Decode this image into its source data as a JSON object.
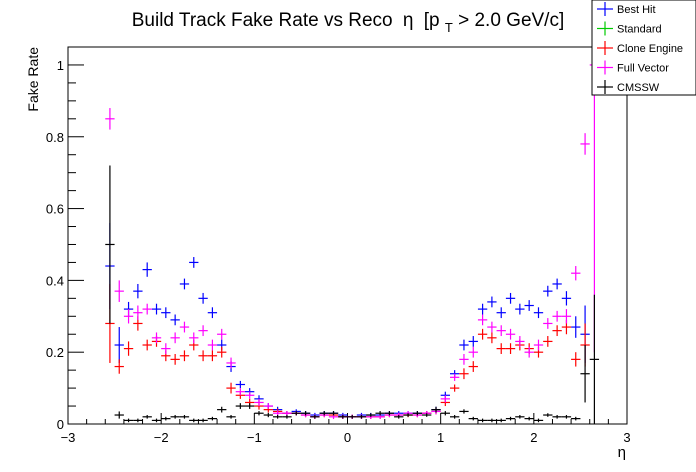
{
  "chart_data": {
    "type": "scatter",
    "title_main": "Build Track Fake Rate vs Reco",
    "title_eta": "η",
    "title_bracket": "[p",
    "title_sub": "T",
    "title_rest": " > 2.0 GeV/c]",
    "xlabel": "η",
    "ylabel": "Fake Rate",
    "xlim": [
      -3.0,
      3.0
    ],
    "ylim": [
      0,
      1.05
    ],
    "xticks": [
      -3,
      -2,
      -1,
      0,
      1,
      2,
      3
    ],
    "xtick_labels": [
      "−3",
      "−2",
      "−1",
      "0",
      "1",
      "2",
      "3"
    ],
    "yticks": [
      0,
      0.2,
      0.4,
      0.6,
      0.8,
      1
    ],
    "ytick_labels": [
      "0",
      "0.2",
      "0.4",
      "0.6",
      "0.8",
      "1"
    ],
    "bin_half_width": 0.05,
    "legend_position": "top-right",
    "series": [
      {
        "name": "Best Hit",
        "color": "#0000ff",
        "points": [
          [
            -2.55,
            0.44,
            0.12
          ],
          [
            -2.45,
            0.22,
            0.05
          ],
          [
            -2.35,
            0.32,
            0.02
          ],
          [
            -2.25,
            0.37,
            0.02
          ],
          [
            -2.15,
            0.43,
            0.02
          ],
          [
            -2.05,
            0.32,
            0.015
          ],
          [
            -1.95,
            0.31,
            0.015
          ],
          [
            -1.85,
            0.29,
            0.015
          ],
          [
            -1.75,
            0.39,
            0.015
          ],
          [
            -1.65,
            0.45,
            0.015
          ],
          [
            -1.55,
            0.35,
            0.015
          ],
          [
            -1.45,
            0.31,
            0.015
          ],
          [
            -1.35,
            0.22,
            0.015
          ],
          [
            -1.25,
            0.16,
            0.015
          ],
          [
            -1.15,
            0.11,
            0.01
          ],
          [
            -1.05,
            0.09,
            0.01
          ],
          [
            -0.95,
            0.07,
            0.01
          ],
          [
            -0.85,
            0.05,
            0.008
          ],
          [
            -0.75,
            0.04,
            0.008
          ],
          [
            -0.65,
            0.03,
            0.006
          ],
          [
            -0.55,
            0.035,
            0.006
          ],
          [
            -0.45,
            0.03,
            0.006
          ],
          [
            -0.35,
            0.025,
            0.006
          ],
          [
            -0.25,
            0.03,
            0.006
          ],
          [
            -0.15,
            0.03,
            0.006
          ],
          [
            -0.05,
            0.025,
            0.006
          ],
          [
            0.05,
            0.02,
            0.006
          ],
          [
            0.15,
            0.025,
            0.006
          ],
          [
            0.25,
            0.025,
            0.006
          ],
          [
            0.35,
            0.025,
            0.006
          ],
          [
            0.45,
            0.03,
            0.006
          ],
          [
            0.55,
            0.03,
            0.006
          ],
          [
            0.65,
            0.03,
            0.006
          ],
          [
            0.75,
            0.03,
            0.006
          ],
          [
            0.85,
            0.03,
            0.006
          ],
          [
            0.95,
            0.04,
            0.008
          ],
          [
            1.05,
            0.08,
            0.01
          ],
          [
            1.15,
            0.14,
            0.01
          ],
          [
            1.25,
            0.22,
            0.015
          ],
          [
            1.35,
            0.23,
            0.015
          ],
          [
            1.45,
            0.32,
            0.015
          ],
          [
            1.55,
            0.34,
            0.015
          ],
          [
            1.65,
            0.31,
            0.015
          ],
          [
            1.75,
            0.35,
            0.015
          ],
          [
            1.85,
            0.32,
            0.015
          ],
          [
            1.95,
            0.33,
            0.015
          ],
          [
            2.05,
            0.31,
            0.015
          ],
          [
            2.15,
            0.37,
            0.015
          ],
          [
            2.25,
            0.39,
            0.015
          ],
          [
            2.35,
            0.35,
            0.02
          ],
          [
            2.45,
            0.27,
            0.03
          ],
          [
            2.55,
            0.25,
            0.08
          ]
        ]
      },
      {
        "name": "Standard",
        "color": "#00cc00",
        "points": []
      },
      {
        "name": "Clone Engine",
        "color": "#ff0000",
        "points": [
          [
            -2.55,
            0.28,
            0.11
          ],
          [
            -2.45,
            0.16,
            0.02
          ],
          [
            -2.35,
            0.21,
            0.02
          ],
          [
            -2.25,
            0.28,
            0.02
          ],
          [
            -2.15,
            0.22,
            0.015
          ],
          [
            -2.05,
            0.23,
            0.015
          ],
          [
            -1.95,
            0.19,
            0.015
          ],
          [
            -1.85,
            0.18,
            0.015
          ],
          [
            -1.75,
            0.19,
            0.015
          ],
          [
            -1.65,
            0.22,
            0.015
          ],
          [
            -1.55,
            0.19,
            0.015
          ],
          [
            -1.45,
            0.19,
            0.015
          ],
          [
            -1.35,
            0.2,
            0.015
          ],
          [
            -1.25,
            0.1,
            0.015
          ],
          [
            -1.15,
            0.08,
            0.01
          ],
          [
            -1.05,
            0.06,
            0.01
          ],
          [
            -0.95,
            0.05,
            0.01
          ],
          [
            -0.85,
            0.04,
            0.008
          ],
          [
            -0.75,
            0.035,
            0.008
          ],
          [
            -0.65,
            0.03,
            0.006
          ],
          [
            -0.55,
            0.03,
            0.006
          ],
          [
            -0.45,
            0.025,
            0.006
          ],
          [
            -0.35,
            0.02,
            0.006
          ],
          [
            -0.25,
            0.025,
            0.006
          ],
          [
            -0.15,
            0.025,
            0.006
          ],
          [
            -0.05,
            0.02,
            0.006
          ],
          [
            0.05,
            0.02,
            0.006
          ],
          [
            0.15,
            0.02,
            0.006
          ],
          [
            0.25,
            0.02,
            0.006
          ],
          [
            0.35,
            0.02,
            0.006
          ],
          [
            0.45,
            0.025,
            0.006
          ],
          [
            0.55,
            0.025,
            0.006
          ],
          [
            0.65,
            0.025,
            0.006
          ],
          [
            0.75,
            0.025,
            0.006
          ],
          [
            0.85,
            0.03,
            0.006
          ],
          [
            0.95,
            0.035,
            0.008
          ],
          [
            1.05,
            0.06,
            0.01
          ],
          [
            1.15,
            0.1,
            0.01
          ],
          [
            1.25,
            0.14,
            0.015
          ],
          [
            1.35,
            0.16,
            0.015
          ],
          [
            1.45,
            0.25,
            0.015
          ],
          [
            1.55,
            0.24,
            0.015
          ],
          [
            1.65,
            0.21,
            0.015
          ],
          [
            1.75,
            0.21,
            0.015
          ],
          [
            1.85,
            0.22,
            0.015
          ],
          [
            1.95,
            0.21,
            0.015
          ],
          [
            2.05,
            0.2,
            0.015
          ],
          [
            2.15,
            0.23,
            0.015
          ],
          [
            2.25,
            0.26,
            0.015
          ],
          [
            2.35,
            0.27,
            0.02
          ],
          [
            2.45,
            0.18,
            0.02
          ],
          [
            2.55,
            0.22,
            0.06
          ]
        ]
      },
      {
        "name": "Full Vector",
        "color": "#ff00ff",
        "points": [
          [
            -2.55,
            0.85,
            0.03
          ],
          [
            -2.45,
            0.37,
            0.03
          ],
          [
            -2.35,
            0.3,
            0.02
          ],
          [
            -2.25,
            0.31,
            0.02
          ],
          [
            -2.15,
            0.32,
            0.015
          ],
          [
            -2.05,
            0.24,
            0.015
          ],
          [
            -1.95,
            0.21,
            0.015
          ],
          [
            -1.85,
            0.24,
            0.015
          ],
          [
            -1.75,
            0.27,
            0.015
          ],
          [
            -1.65,
            0.24,
            0.015
          ],
          [
            -1.55,
            0.26,
            0.015
          ],
          [
            -1.45,
            0.22,
            0.015
          ],
          [
            -1.35,
            0.25,
            0.015
          ],
          [
            -1.25,
            0.17,
            0.015
          ],
          [
            -1.15,
            0.09,
            0.01
          ],
          [
            -1.05,
            0.08,
            0.01
          ],
          [
            -0.95,
            0.06,
            0.01
          ],
          [
            -0.85,
            0.05,
            0.008
          ],
          [
            -0.75,
            0.03,
            0.008
          ],
          [
            -0.65,
            0.03,
            0.006
          ],
          [
            -0.55,
            0.03,
            0.006
          ],
          [
            -0.45,
            0.025,
            0.006
          ],
          [
            -0.35,
            0.02,
            0.006
          ],
          [
            -0.25,
            0.025,
            0.006
          ],
          [
            -0.15,
            0.02,
            0.006
          ],
          [
            -0.05,
            0.02,
            0.006
          ],
          [
            0.05,
            0.02,
            0.006
          ],
          [
            0.15,
            0.02,
            0.006
          ],
          [
            0.25,
            0.02,
            0.006
          ],
          [
            0.35,
            0.02,
            0.006
          ],
          [
            0.45,
            0.025,
            0.006
          ],
          [
            0.55,
            0.025,
            0.006
          ],
          [
            0.65,
            0.03,
            0.006
          ],
          [
            0.75,
            0.025,
            0.006
          ],
          [
            0.85,
            0.03,
            0.006
          ],
          [
            0.95,
            0.035,
            0.008
          ],
          [
            1.05,
            0.07,
            0.01
          ],
          [
            1.15,
            0.13,
            0.01
          ],
          [
            1.25,
            0.18,
            0.015
          ],
          [
            1.35,
            0.2,
            0.015
          ],
          [
            1.45,
            0.29,
            0.015
          ],
          [
            1.55,
            0.27,
            0.015
          ],
          [
            1.65,
            0.26,
            0.015
          ],
          [
            1.75,
            0.25,
            0.015
          ],
          [
            1.85,
            0.23,
            0.015
          ],
          [
            1.95,
            0.2,
            0.015
          ],
          [
            2.05,
            0.22,
            0.015
          ],
          [
            2.15,
            0.28,
            0.015
          ],
          [
            2.25,
            0.3,
            0.015
          ],
          [
            2.35,
            0.3,
            0.02
          ],
          [
            2.45,
            0.42,
            0.02
          ],
          [
            2.55,
            0.78,
            0.03
          ],
          [
            2.65,
            1.0,
            0.8
          ]
        ]
      },
      {
        "name": "CMSSW",
        "color": "#000000",
        "points": [
          [
            -2.55,
            0.5,
            0.22
          ],
          [
            -2.45,
            0.025,
            0.01
          ],
          [
            -2.35,
            0.01,
            0.005
          ],
          [
            -2.25,
            0.01,
            0.005
          ],
          [
            -2.15,
            0.02,
            0.005
          ],
          [
            -2.05,
            0.01,
            0.005
          ],
          [
            -1.95,
            0.015,
            0.005
          ],
          [
            -1.85,
            0.02,
            0.005
          ],
          [
            -1.75,
            0.02,
            0.005
          ],
          [
            -1.65,
            0.01,
            0.005
          ],
          [
            -1.55,
            0.01,
            0.005
          ],
          [
            -1.45,
            0.015,
            0.005
          ],
          [
            -1.35,
            0.04,
            0.008
          ],
          [
            -1.25,
            0.02,
            0.005
          ],
          [
            -1.15,
            0.05,
            0.008
          ],
          [
            -1.05,
            0.05,
            0.008
          ],
          [
            -0.95,
            0.03,
            0.006
          ],
          [
            -0.85,
            0.025,
            0.006
          ],
          [
            -0.75,
            0.02,
            0.005
          ],
          [
            -0.65,
            0.02,
            0.005
          ],
          [
            -0.55,
            0.03,
            0.006
          ],
          [
            -0.45,
            0.03,
            0.006
          ],
          [
            -0.35,
            0.02,
            0.005
          ],
          [
            -0.25,
            0.03,
            0.006
          ],
          [
            -0.15,
            0.03,
            0.006
          ],
          [
            -0.05,
            0.02,
            0.005
          ],
          [
            0.05,
            0.02,
            0.005
          ],
          [
            0.15,
            0.02,
            0.005
          ],
          [
            0.25,
            0.025,
            0.005
          ],
          [
            0.35,
            0.03,
            0.006
          ],
          [
            0.45,
            0.03,
            0.006
          ],
          [
            0.55,
            0.02,
            0.005
          ],
          [
            0.65,
            0.025,
            0.005
          ],
          [
            0.75,
            0.03,
            0.006
          ],
          [
            0.85,
            0.025,
            0.005
          ],
          [
            0.95,
            0.04,
            0.008
          ],
          [
            1.05,
            0.03,
            0.006
          ],
          [
            1.15,
            0.02,
            0.005
          ],
          [
            1.25,
            0.035,
            0.006
          ],
          [
            1.35,
            0.015,
            0.005
          ],
          [
            1.45,
            0.01,
            0.005
          ],
          [
            1.55,
            0.01,
            0.005
          ],
          [
            1.65,
            0.01,
            0.005
          ],
          [
            1.75,
            0.015,
            0.005
          ],
          [
            1.85,
            0.02,
            0.005
          ],
          [
            1.95,
            0.015,
            0.005
          ],
          [
            2.05,
            0.01,
            0.005
          ],
          [
            2.15,
            0.025,
            0.005
          ],
          [
            2.25,
            0.02,
            0.005
          ],
          [
            2.35,
            0.02,
            0.005
          ],
          [
            2.45,
            0.015,
            0.005
          ],
          [
            2.55,
            0.14,
            0.08
          ],
          [
            2.65,
            0.18,
            0.18
          ]
        ]
      }
    ]
  }
}
